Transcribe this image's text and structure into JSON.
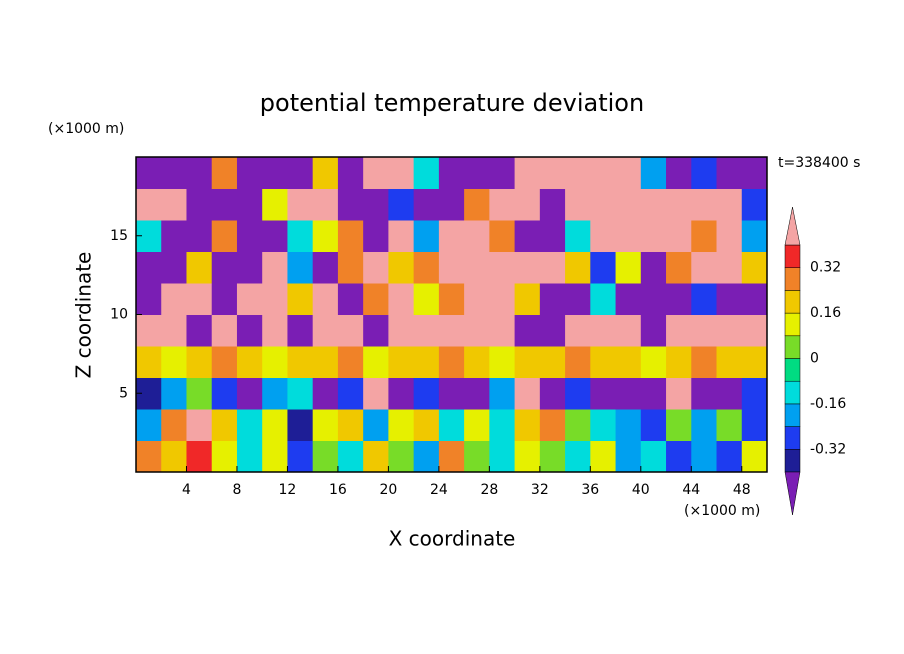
{
  "chart_data": {
    "type": "contour",
    "title": "potential temperature deviation",
    "x_label": "X coordinate",
    "y_label": "Z coordinate",
    "x_unit": "(×1000 m)",
    "y_unit": "(×1000 m)",
    "time_label": "t=338400 s",
    "xlim": [
      0,
      50
    ],
    "ylim": [
      0,
      20
    ],
    "xticks": [
      4,
      8,
      12,
      16,
      20,
      24,
      28,
      32,
      36,
      40,
      44,
      48
    ],
    "yticks": [
      5,
      10,
      15
    ],
    "x": [
      1,
      3,
      5,
      7,
      9,
      11,
      13,
      15,
      17,
      19,
      21,
      23,
      25,
      27,
      29,
      31,
      33,
      35,
      37,
      39,
      41,
      43,
      45,
      47,
      49
    ],
    "y": [
      1,
      3,
      5,
      7,
      9,
      11,
      13,
      15,
      17,
      19
    ],
    "values": [
      [
        0.3,
        0.2,
        0.35,
        0.1,
        -0.1,
        0.1,
        -0.3,
        0,
        -0.1,
        0.2,
        0,
        -0.2,
        0.25,
        0,
        -0.1,
        0.1,
        0.05,
        -0.1,
        0.1,
        -0.2,
        -0.1,
        -0.3,
        -0.2,
        -0.3,
        0.1
      ],
      [
        -0.2,
        0.3,
        0.45,
        0.2,
        -0.1,
        0.1,
        -0.35,
        0.1,
        0.2,
        -0.2,
        0.1,
        0.2,
        -0.1,
        0.1,
        -0.15,
        0.2,
        0.3,
        0,
        -0.1,
        -0.2,
        -0.3,
        0,
        -0.2,
        0,
        -0.3
      ],
      [
        -0.35,
        -0.2,
        0,
        -0.3,
        -0.45,
        -0.2,
        -0.1,
        -0.45,
        -0.3,
        0.45,
        -0.45,
        -0.3,
        -0.45,
        -0.45,
        -0.2,
        0.45,
        -0.45,
        -0.3,
        -0.45,
        -0.45,
        -0.45,
        0.45,
        -0.45,
        -0.45,
        -0.3
      ],
      [
        0.2,
        0.15,
        0.2,
        0.25,
        0.2,
        0.15,
        0.2,
        0.2,
        0.25,
        0.15,
        0.2,
        0.2,
        0.25,
        0.2,
        0.15,
        0.2,
        0.2,
        0.25,
        0.2,
        0.2,
        0.15,
        0.2,
        0.25,
        0.2,
        0.2
      ],
      [
        0.45,
        0.45,
        -0.45,
        0.45,
        -0.45,
        0.45,
        -0.45,
        0.45,
        0.45,
        -0.45,
        0.45,
        0.45,
        0.45,
        0.45,
        0.45,
        -0.45,
        -0.45,
        0.45,
        0.45,
        0.45,
        -0.45,
        0.45,
        0.45,
        0.45,
        0.45
      ],
      [
        -0.45,
        0.45,
        0.45,
        -0.45,
        0.45,
        0.45,
        0.2,
        0.45,
        -0.45,
        0.3,
        0.45,
        0.1,
        0.3,
        0.45,
        0.45,
        0.2,
        -0.45,
        -0.45,
        -0.1,
        -0.45,
        -0.45,
        -0.45,
        -0.3,
        -0.45,
        -0.45
      ],
      [
        -0.45,
        -0.45,
        0.2,
        -0.45,
        -0.45,
        0.45,
        -0.2,
        -0.45,
        0.3,
        0.45,
        0.2,
        0.3,
        0.45,
        0.45,
        0.45,
        0.45,
        0.45,
        0.2,
        -0.3,
        0.1,
        -0.45,
        0.3,
        0.45,
        0.45,
        0.2
      ],
      [
        -0.1,
        -0.45,
        -0.45,
        0.3,
        -0.45,
        -0.45,
        -0.1,
        0.1,
        0.3,
        -0.45,
        0.45,
        -0.2,
        0.45,
        0.45,
        0.3,
        -0.45,
        -0.45,
        -0.1,
        0.45,
        0.45,
        0.45,
        0.45,
        0.3,
        0.45,
        -0.2
      ],
      [
        0.45,
        0.45,
        -0.45,
        -0.45,
        -0.45,
        0.1,
        0.45,
        0.45,
        -0.45,
        -0.45,
        -0.3,
        -0.45,
        -0.45,
        0.3,
        0.45,
        0.45,
        -0.45,
        0.45,
        0.45,
        0.45,
        0.45,
        0.45,
        0.45,
        0.45,
        -0.3
      ],
      [
        -0.45,
        -0.45,
        -0.45,
        0.3,
        -0.45,
        -0.45,
        -0.45,
        0.2,
        -0.45,
        0.45,
        0.45,
        -0.1,
        -0.45,
        -0.45,
        -0.45,
        0.45,
        0.45,
        0.45,
        0.45,
        0.45,
        -0.2,
        -0.45,
        -0.3,
        -0.45,
        -0.45
      ]
    ],
    "levels": [
      -0.4,
      -0.32,
      -0.24,
      -0.16,
      -0.08,
      0,
      0.08,
      0.16,
      0.24,
      0.32,
      0.4
    ],
    "colors": [
      "#7a1eb4",
      "#1e1e96",
      "#1e3cf0",
      "#00a0f0",
      "#00dcdc",
      "#00dc82",
      "#78dc28",
      "#e6f000",
      "#f0c800",
      "#f08228",
      "#f02828",
      "#f4a4a4"
    ],
    "cbar_ticks": [
      0.32,
      0.16,
      0,
      -0.16,
      -0.32
    ]
  }
}
